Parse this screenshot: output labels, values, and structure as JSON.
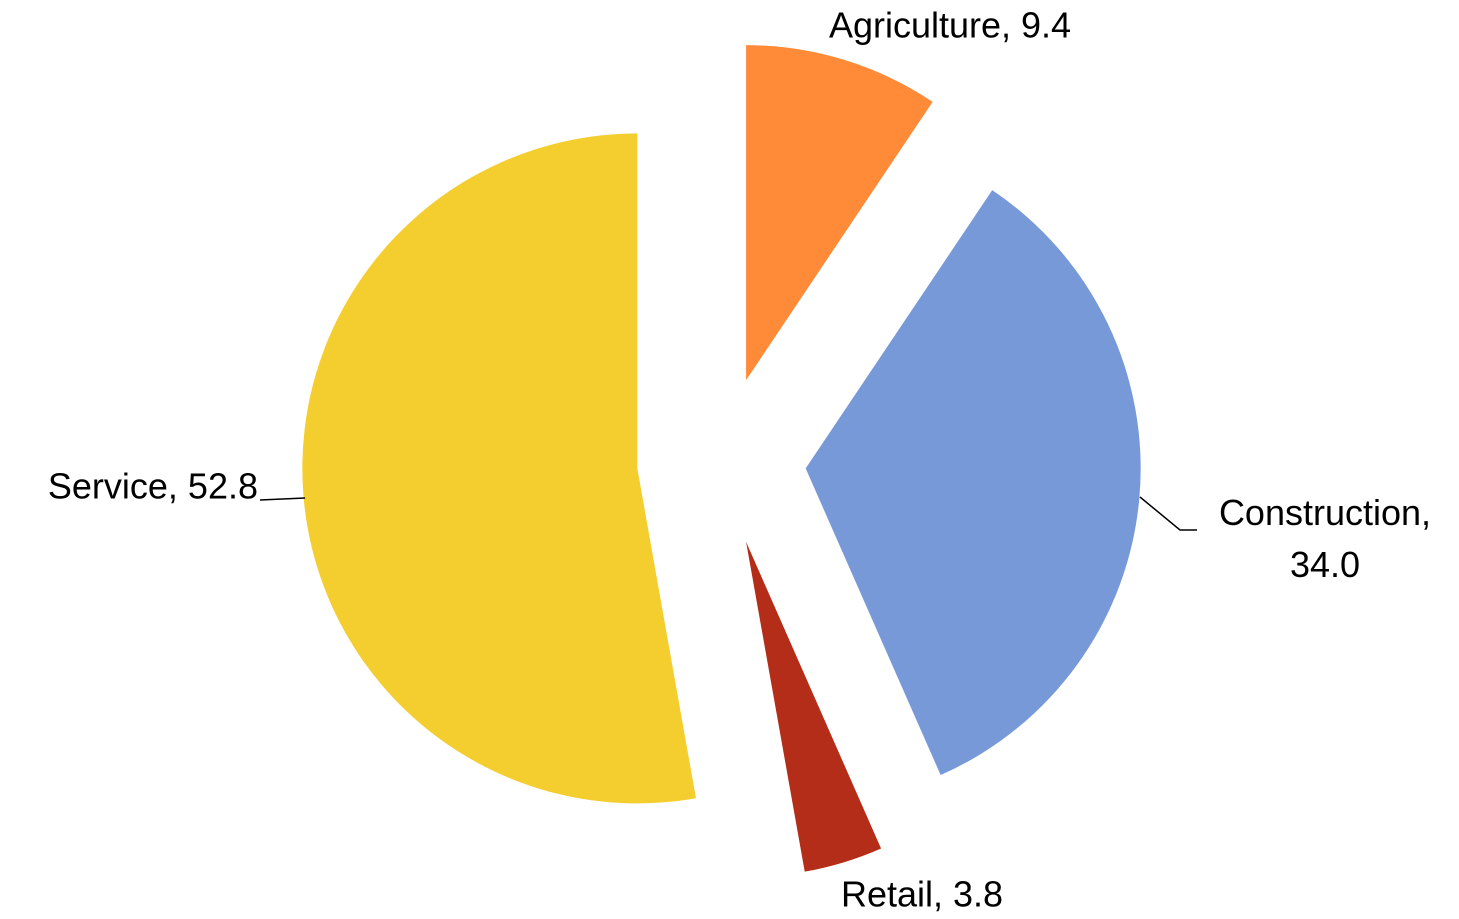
{
  "chart_data": {
    "type": "pie",
    "values": [
      9.4,
      34.0,
      3.8,
      52.8
    ],
    "value_labels": [
      "Agriculture, 9.4",
      "Construction, 34.0",
      "Retail, 3.8",
      "Service, 52.8"
    ],
    "colors": [
      "#ff8a38",
      "#7899d8",
      "#b32d18",
      "#f4cd2e"
    ]
  }
}
